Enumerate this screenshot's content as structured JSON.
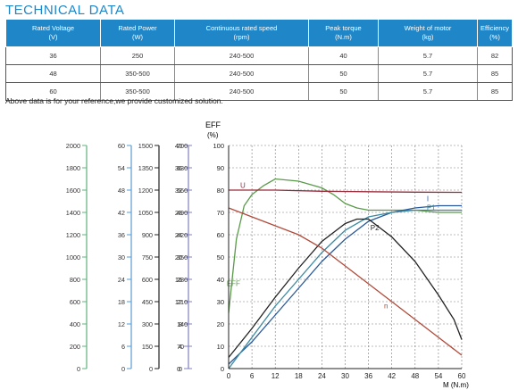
{
  "heading": "TECHNICAL DATA",
  "table": {
    "columns": [
      {
        "name": "Rated Voltage",
        "unit": "(V)"
      },
      {
        "name": "Rated Power",
        "unit": "(W)"
      },
      {
        "name": "Continuous rated speed",
        "unit": "(rpm)"
      },
      {
        "name": "Peak torque",
        "unit": "(N.m)"
      },
      {
        "name": "Weight of motor",
        "unit": "(kg)"
      },
      {
        "name": "Efficiency",
        "unit": "(%)"
      }
    ],
    "rows": [
      [
        "36",
        "250",
        "240-500",
        "40",
        "5.7",
        "82"
      ],
      [
        "48",
        "350-500",
        "240-500",
        "50",
        "5.7",
        "85"
      ],
      [
        "60",
        "350-500",
        "240-500",
        "50",
        "5.7",
        "85"
      ]
    ]
  },
  "note": "Above  data is for your reference,we provide customized solution.",
  "chart_data": {
    "type": "line",
    "title": "",
    "y_title_top": "EFF",
    "y_title_bottom": "(%)",
    "xlabel": "M (N.m)",
    "xlim": [
      0,
      60
    ],
    "ylim": [
      0,
      100
    ],
    "grid": true,
    "x_ticks": [
      "0",
      "6",
      "12",
      "18",
      "24",
      "30",
      "36",
      "42",
      "48",
      "54",
      "60"
    ],
    "y_ticks": [
      "0",
      "10",
      "20",
      "30",
      "40",
      "50",
      "60",
      "70",
      "80",
      "90",
      "100"
    ],
    "scales": [
      {
        "color": "#5fb07a",
        "ticks": [
          "0",
          "200",
          "400",
          "600",
          "800",
          "1000",
          "1200",
          "1400",
          "1600",
          "1800",
          "2000"
        ]
      },
      {
        "color": "#5a9bd2",
        "ticks": [
          "0",
          "6",
          "12",
          "18",
          "24",
          "30",
          "36",
          "42",
          "48",
          "54",
          "60"
        ]
      },
      {
        "color": "#222222",
        "ticks": [
          "0",
          "150",
          "300",
          "450",
          "600",
          "750",
          "900",
          "1050",
          "1200",
          "1350",
          "1500"
        ]
      },
      {
        "color": "#8080c0",
        "ticks": [
          "0",
          "4",
          "8",
          "12",
          "16",
          "20",
          "24",
          "28",
          "32",
          "36",
          "40"
        ]
      },
      {
        "color": "#c05a7a",
        "ticks": [
          "0",
          "70",
          "140",
          "210",
          "280",
          "350",
          "420",
          "490",
          "560",
          "630",
          "700"
        ]
      }
    ],
    "series": [
      {
        "name": "EFF",
        "color": "#5a9a4a",
        "label_at": [
          -0.5,
          37
        ],
        "points": [
          [
            0,
            25
          ],
          [
            2,
            58
          ],
          [
            4,
            73
          ],
          [
            6,
            78
          ],
          [
            9,
            82
          ],
          [
            12,
            85
          ],
          [
            18,
            84
          ],
          [
            24,
            81
          ],
          [
            27,
            78
          ],
          [
            30,
            74
          ],
          [
            33,
            72
          ],
          [
            36,
            71
          ],
          [
            42,
            71
          ],
          [
            48,
            71
          ],
          [
            54,
            70
          ],
          [
            60,
            70
          ]
        ]
      },
      {
        "name": "U",
        "color": "#9a2a3a",
        "label_at": [
          3,
          81
        ],
        "points": [
          [
            0,
            80
          ],
          [
            12,
            80
          ],
          [
            24,
            79.5
          ],
          [
            36,
            79.3
          ],
          [
            48,
            79.1
          ],
          [
            60,
            79
          ]
        ]
      },
      {
        "name": "I",
        "color": "#2a5a9a",
        "label_at": [
          51,
          75
        ],
        "points": [
          [
            0,
            2
          ],
          [
            6,
            12
          ],
          [
            12,
            24
          ],
          [
            18,
            36
          ],
          [
            24,
            48
          ],
          [
            30,
            58
          ],
          [
            36,
            66
          ],
          [
            42,
            70
          ],
          [
            48,
            72
          ],
          [
            54,
            73
          ],
          [
            60,
            73
          ]
        ]
      },
      {
        "name": "P1",
        "color": "#3a8aa0",
        "label_at": [
          51,
          71
        ],
        "points": [
          [
            0,
            0
          ],
          [
            6,
            14
          ],
          [
            12,
            28
          ],
          [
            18,
            40
          ],
          [
            24,
            52
          ],
          [
            30,
            62
          ],
          [
            36,
            68
          ],
          [
            42,
            70
          ],
          [
            48,
            71
          ],
          [
            54,
            71
          ],
          [
            60,
            71
          ]
        ]
      },
      {
        "name": "P2",
        "color": "#222222",
        "label_at": [
          36.5,
          62
        ],
        "points": [
          [
            0,
            5
          ],
          [
            6,
            18
          ],
          [
            12,
            32
          ],
          [
            18,
            45
          ],
          [
            24,
            57
          ],
          [
            30,
            65
          ],
          [
            33,
            67
          ],
          [
            36,
            67
          ],
          [
            42,
            59
          ],
          [
            48,
            48
          ],
          [
            54,
            33
          ],
          [
            58,
            22
          ],
          [
            60,
            13
          ]
        ]
      },
      {
        "name": "n",
        "color": "#b04a3a",
        "label_at": [
          40,
          27
        ],
        "points": [
          [
            0,
            72
          ],
          [
            6,
            68
          ],
          [
            12,
            64
          ],
          [
            18,
            60
          ],
          [
            24,
            54
          ],
          [
            30,
            46
          ],
          [
            36,
            38
          ],
          [
            42,
            30
          ],
          [
            48,
            22
          ],
          [
            54,
            14
          ],
          [
            60,
            6
          ]
        ]
      }
    ]
  }
}
